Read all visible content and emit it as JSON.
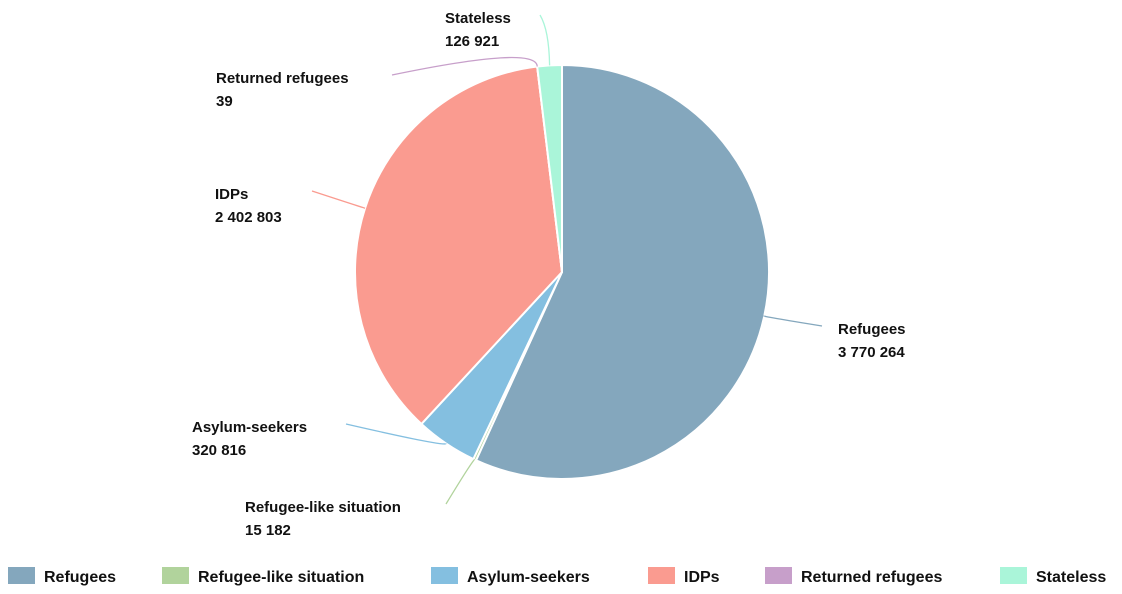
{
  "chart_data": {
    "type": "pie",
    "title": "",
    "legend_position": "bottom",
    "slices": [
      {
        "name": "Refugees",
        "value": 3770264,
        "value_label": "3 770 264",
        "color": "#84a7bd"
      },
      {
        "name": "Refugee-like situation",
        "value": 15182,
        "value_label": "15 182",
        "color": "#b1d39c"
      },
      {
        "name": "Asylum-seekers",
        "value": 320816,
        "value_label": "320 816",
        "color": "#84bfe0"
      },
      {
        "name": "IDPs",
        "value": 2402803,
        "value_label": "2 402 803",
        "color": "#fa9b90"
      },
      {
        "name": "Returned refugees",
        "value": 39,
        "value_label": "39",
        "color": "#c79fca"
      },
      {
        "name": "Stateless",
        "value": 126921,
        "value_label": "126 921",
        "color": "#aaf5d9"
      }
    ]
  }
}
